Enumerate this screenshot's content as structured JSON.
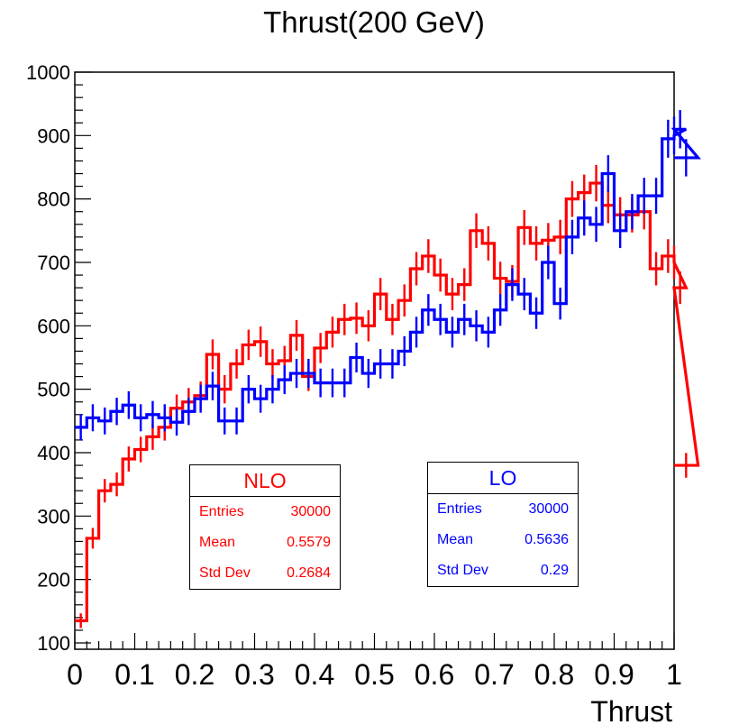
{
  "chart_data": {
    "type": "histogram",
    "title": "Thrust(200 GeV)",
    "xlabel": "Thrust",
    "ylabel": "",
    "xlim": [
      0,
      1
    ],
    "ylim": [
      90,
      1000
    ],
    "bin_width": 0.02,
    "x_ticks": [
      "0",
      "0.1",
      "0.2",
      "0.3",
      "0.4",
      "0.5",
      "0.6",
      "0.7",
      "0.8",
      "0.9",
      "1"
    ],
    "y_ticks": [
      "100",
      "200",
      "300",
      "400",
      "500",
      "600",
      "700",
      "800",
      "900",
      "1000"
    ],
    "series": [
      {
        "name": "NLO",
        "color": "#ff0000",
        "values": [
          135,
          265,
          340,
          350,
          390,
          405,
          425,
          440,
          470,
          480,
          490,
          555,
          500,
          540,
          570,
          575,
          540,
          545,
          585,
          520,
          565,
          590,
          610,
          612,
          600,
          650,
          610,
          640,
          690,
          710,
          680,
          650,
          665,
          750,
          730,
          675,
          670,
          755,
          730,
          735,
          740,
          800,
          810,
          825,
          790,
          775,
          775,
          780,
          690,
          710,
          700,
          660,
          380
        ],
        "stats": {
          "label": "NLO",
          "entries_label": "Entries",
          "entries": "30000",
          "mean_label": "Mean",
          "mean": "0.5579",
          "std_label": "Std Dev",
          "std": "0.2684"
        }
      },
      {
        "name": "LO",
        "color": "#0000ff",
        "values": [
          440,
          455,
          450,
          465,
          475,
          455,
          460,
          455,
          448,
          465,
          485,
          505,
          450,
          450,
          500,
          485,
          500,
          515,
          525,
          525,
          510,
          510,
          510,
          550,
          525,
          540,
          540,
          560,
          590,
          625,
          610,
          590,
          610,
          600,
          590,
          625,
          665,
          650,
          620,
          700,
          635,
          740,
          770,
          760,
          840,
          750,
          780,
          805,
          805,
          895,
          900,
          910,
          865
        ],
        "stats": {
          "label": "LO",
          "entries_label": "Entries",
          "entries": "30000",
          "mean_label": "Mean",
          "mean": "0.5636",
          "std_label": "Std Dev",
          "std": "0.29"
        }
      }
    ]
  }
}
